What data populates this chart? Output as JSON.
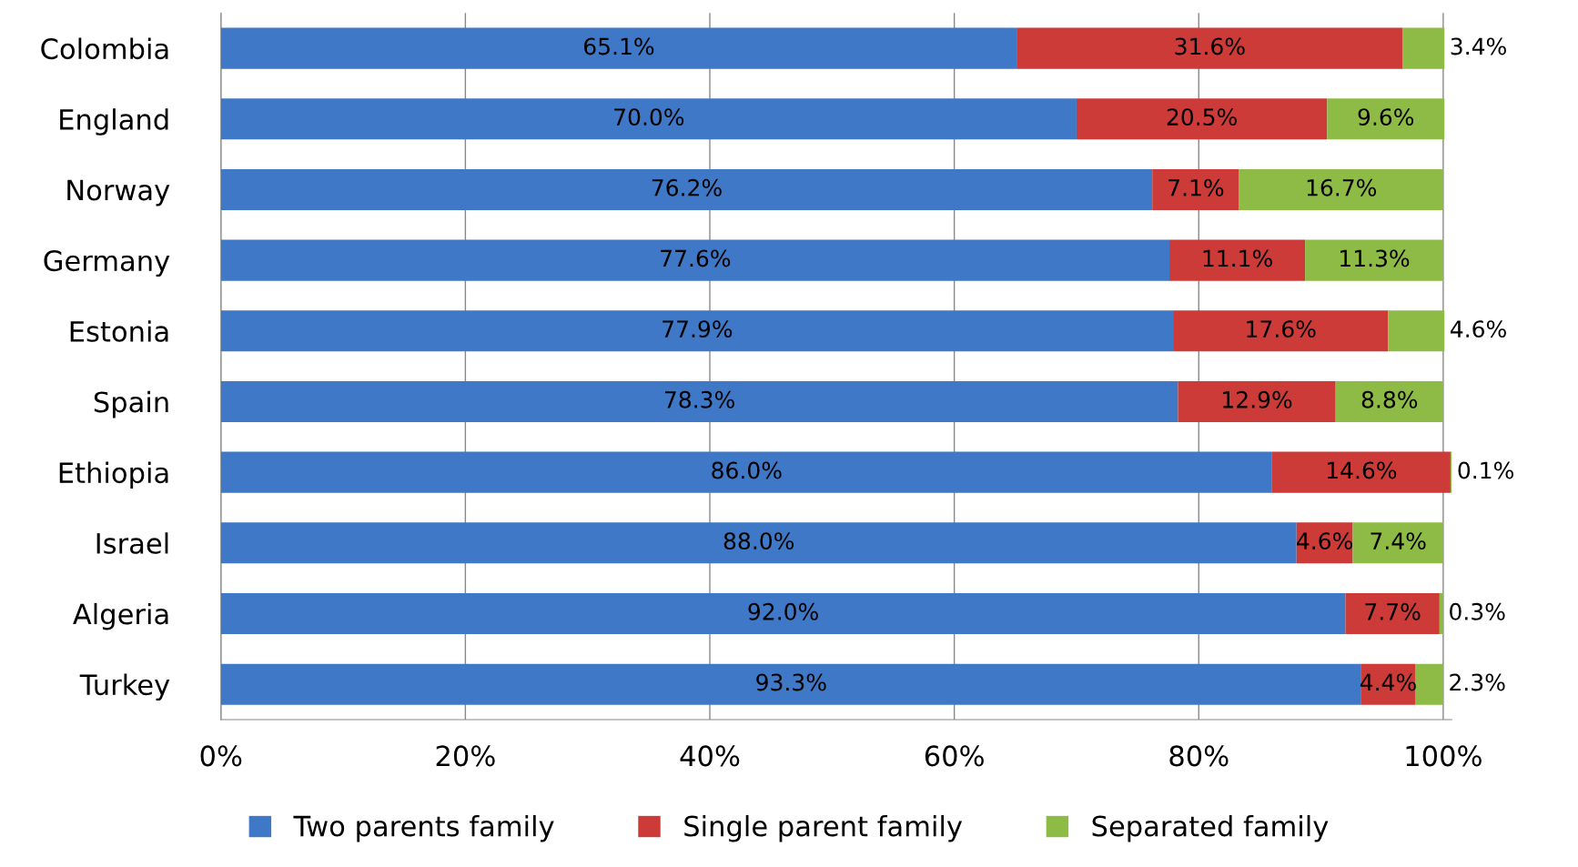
{
  "chart_data": {
    "type": "bar",
    "orientation": "horizontal",
    "stacked": true,
    "categories": [
      "Colombia",
      "England",
      "Norway",
      "Germany",
      "Estonia",
      "Spain",
      "Ethiopia",
      "Israel",
      "Algeria",
      "Turkey"
    ],
    "series": [
      {
        "name": "Two parents family",
        "color": "#3f78c6",
        "values": [
          65.1,
          70.0,
          76.2,
          77.6,
          77.9,
          78.3,
          86.0,
          88.0,
          92.0,
          93.3
        ],
        "value_labels": [
          "65.1%",
          "70.0%",
          "76.2%",
          "77.6%",
          "77.9%",
          "78.3%",
          "86.0%",
          "88.0%",
          "92.0%",
          "93.3%"
        ]
      },
      {
        "name": "Single parent family",
        "color": "#cc3b38",
        "values": [
          31.6,
          20.5,
          7.1,
          11.1,
          17.6,
          12.9,
          14.6,
          4.6,
          7.7,
          4.4
        ],
        "value_labels": [
          "31.6%",
          "20.5%",
          "7.1%",
          "11.1%",
          "17.6%",
          "12.9%",
          "14.6%",
          "4.6%",
          "7.7%",
          "4.4%"
        ]
      },
      {
        "name": "Separated family",
        "color": "#8dbb45",
        "values": [
          3.4,
          9.6,
          16.7,
          11.3,
          4.6,
          8.8,
          0.1,
          7.4,
          0.3,
          2.3
        ],
        "value_labels": [
          "3.4%",
          "9.6%",
          "16.7%",
          "11.3%",
          "4.6%",
          "8.8%",
          "0.1%",
          "7.4%",
          "0.3%",
          "2.3%"
        ]
      }
    ],
    "xlim": [
      0,
      100.7
    ],
    "xticks": [
      {
        "value": 0,
        "label": "0%"
      },
      {
        "value": 20,
        "label": "20%"
      },
      {
        "value": 40,
        "label": "40%"
      },
      {
        "value": 60,
        "label": "60%"
      },
      {
        "value": 80,
        "label": "80%"
      },
      {
        "value": 100,
        "label": "100%"
      }
    ],
    "grid": "x",
    "legend": "bottom"
  }
}
